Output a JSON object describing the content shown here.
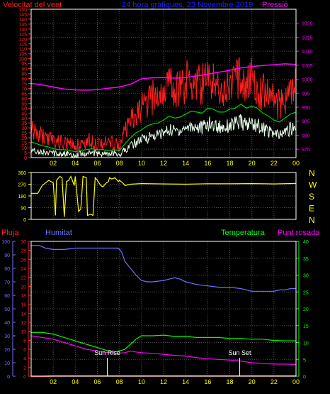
{
  "chart_data": [
    {
      "type": "line",
      "title": "24 hora gràfiques, 23 Novembre 2019",
      "left_label": "Velocitat del vent",
      "right_label": "Pressió",
      "colors": {
        "title": "#2020ff",
        "left_label": "#ff2020",
        "right_label": "#ff00ff",
        "grid": "#505050",
        "axis": "#ffffff"
      },
      "x_ticks": [
        "02",
        "04",
        "06",
        "08",
        "10",
        "12",
        "14",
        "16",
        "18",
        "20",
        "22",
        "00"
      ],
      "xlim": [
        0,
        24
      ],
      "ylim_left": [
        0,
        150
      ],
      "y_ticks_left": [
        0,
        5,
        10,
        15,
        20,
        25,
        30,
        35,
        40,
        45,
        50,
        55,
        60,
        65,
        70,
        75,
        80,
        85,
        90,
        95,
        100,
        105,
        110,
        115,
        120,
        125,
        130,
        135,
        140,
        145,
        150
      ],
      "ylim_right": [
        972,
        1025
      ],
      "y_ticks_right": [
        975,
        980,
        985,
        990,
        995,
        1000,
        1005,
        1010,
        1015,
        1020
      ],
      "series": [
        {
          "key": "pressure",
          "color": "#ff00ff",
          "axis": "right",
          "x": [
            0,
            1,
            2,
            3,
            4,
            5,
            6,
            7,
            8,
            9,
            10,
            11,
            12,
            13,
            14,
            15,
            16,
            17,
            18,
            19,
            20,
            21,
            22,
            23,
            24
          ],
          "values": [
            998.5,
            998,
            997.2,
            996.5,
            996.2,
            996.1,
            996.3,
            996.8,
            997.2,
            998.2,
            1000.2,
            1000.5,
            1000.6,
            1000.4,
            1000.6,
            1001.2,
            1001.8,
            1002.5,
            1003.2,
            1004,
            1004.5,
            1004.9,
            1005.2,
            1005.5,
            1005.3
          ]
        },
        {
          "key": "gust",
          "color": "#ff2020",
          "axis": "left",
          "x": [
            0,
            0.5,
            1,
            1.5,
            2,
            2.5,
            3,
            3.5,
            4,
            4.5,
            5,
            5.5,
            6,
            6.5,
            7,
            7.5,
            8,
            8.5,
            9,
            9.5,
            10,
            10.5,
            11,
            11.5,
            12,
            12.5,
            13,
            13.5,
            14,
            14.5,
            15,
            15.5,
            16,
            16.5,
            17,
            17.5,
            18,
            18.5,
            19,
            19.5,
            20,
            20.5,
            21,
            21.5,
            22,
            22.5,
            23,
            23.5,
            24
          ],
          "values": [
            28,
            24,
            22,
            20,
            17,
            16,
            15,
            13,
            12,
            14,
            16,
            18,
            15,
            16,
            14,
            15,
            12,
            25,
            35,
            42,
            50,
            55,
            60,
            62,
            68,
            75,
            70,
            72,
            76,
            80,
            78,
            74,
            80,
            78,
            72,
            70,
            76,
            78,
            82,
            75,
            80,
            72,
            66,
            70,
            58,
            52,
            60,
            66,
            72
          ]
        },
        {
          "key": "wind",
          "color": "#00d000",
          "axis": "left",
          "x": [
            0,
            0.5,
            1,
            1.5,
            2,
            2.5,
            3,
            3.5,
            4,
            4.5,
            5,
            5.5,
            6,
            6.5,
            7,
            7.5,
            8,
            8.5,
            9,
            9.5,
            10,
            10.5,
            11,
            11.5,
            12,
            12.5,
            13,
            13.5,
            14,
            14.5,
            15,
            15.5,
            16,
            16.5,
            17,
            17.5,
            18,
            18.5,
            19,
            19.5,
            20,
            20.5,
            21,
            21.5,
            22,
            22.5,
            23,
            23.5,
            24
          ],
          "values": [
            16,
            14,
            12,
            11,
            9,
            8,
            8,
            7,
            6,
            7,
            8,
            9,
            8,
            8,
            7,
            8,
            7,
            14,
            20,
            25,
            28,
            32,
            34,
            35,
            38,
            42,
            40,
            41,
            44,
            47,
            46,
            45,
            50,
            49,
            46,
            46,
            49,
            50,
            54,
            50,
            52,
            50,
            45,
            42,
            38,
            36,
            40,
            44,
            46
          ]
        },
        {
          "key": "average",
          "color": "#e8ffe8",
          "axis": "left",
          "x": [
            0,
            0.5,
            1,
            1.5,
            2,
            2.5,
            3,
            3.5,
            4,
            4.5,
            5,
            5.5,
            6,
            6.5,
            7,
            7.5,
            8,
            8.5,
            9,
            9.5,
            10,
            10.5,
            11,
            11.5,
            12,
            12.5,
            13,
            13.5,
            14,
            14.5,
            15,
            15.5,
            16,
            16.5,
            17,
            17.5,
            18,
            18.5,
            19,
            19.5,
            20,
            20.5,
            21,
            21.5,
            22,
            22.5,
            23,
            23.5,
            24
          ],
          "values": [
            8,
            7,
            6,
            5,
            4,
            4,
            4,
            3,
            3,
            4,
            4,
            5,
            4,
            4,
            3,
            4,
            3,
            8,
            12,
            15,
            18,
            20,
            22,
            23,
            25,
            28,
            27,
            28,
            30,
            32,
            31,
            30,
            34,
            33,
            31,
            31,
            33,
            34,
            36,
            33,
            35,
            33,
            29,
            27,
            24,
            22,
            26,
            29,
            31
          ]
        }
      ]
    },
    {
      "type": "line",
      "title": "",
      "x_ticks": [
        "02",
        "04",
        "06",
        "08",
        "10",
        "12",
        "14",
        "16",
        "18",
        "20",
        "22",
        "00"
      ],
      "xlim": [
        0,
        24
      ],
      "ylim_left": [
        0,
        360
      ],
      "y_ticks_left": [
        0,
        90,
        180,
        270,
        360
      ],
      "direction_labels": [
        "N",
        "W",
        "S",
        "E",
        "N"
      ],
      "colors": {
        "line": "#ffff00",
        "labels": "#ffff00"
      },
      "series": [
        {
          "key": "direction",
          "color": "#ffff00",
          "x": [
            0,
            0.6,
            1,
            1.3,
            1.6,
            2,
            2.2,
            2.3,
            2.6,
            2.8,
            3,
            3.2,
            3.4,
            3.6,
            3.9,
            4,
            4.3,
            4.5,
            4.7,
            5,
            5.1,
            5.4,
            5.6,
            5.8,
            6,
            6.3,
            6.5,
            6.8,
            7,
            7.1,
            7.3,
            7.6,
            7.9,
            8,
            8.3,
            8.5,
            9,
            10,
            12,
            14,
            16,
            18,
            20,
            22,
            24
          ],
          "values": [
            200,
            200,
            260,
            280,
            300,
            280,
            30,
            300,
            330,
            320,
            20,
            290,
            300,
            330,
            260,
            330,
            60,
            80,
            330,
            320,
            30,
            40,
            30,
            320,
            300,
            260,
            250,
            280,
            290,
            320,
            310,
            320,
            290,
            300,
            280,
            260,
            270,
            275,
            272,
            270,
            274,
            273,
            275,
            272,
            276
          ]
        }
      ]
    },
    {
      "type": "line",
      "left_label": "Pluja",
      "left2_label": "Humitat",
      "right_label": "Temperatura",
      "right2_label": "Punt rosada",
      "colors": {
        "left_label": "#ff2020",
        "left2_label": "#7070ff",
        "right_label": "#00ff00",
        "right2_label": "#ff00ff",
        "rain_axis": "#ff2020",
        "humidity_axis": "#7070ff",
        "temp_axis": "#00ff00"
      },
      "x_ticks": [
        "02",
        "04",
        "06",
        "08",
        "10",
        "12",
        "14",
        "16",
        "18",
        "20",
        "22",
        "00"
      ],
      "xlim": [
        0,
        24
      ],
      "y_ticks_humidity": [
        0,
        10,
        20,
        30,
        40,
        50,
        60,
        70,
        80,
        90,
        100
      ],
      "ylim_humidity": [
        0,
        100
      ],
      "y_ticks_rain": [
        0,
        2,
        4,
        6,
        8,
        10,
        12,
        14,
        16,
        18,
        20,
        22,
        24,
        26,
        28,
        30
      ],
      "ylim_rain": [
        0,
        30
      ],
      "y_ticks_temp": [
        0,
        5,
        10,
        15,
        20,
        25,
        30,
        35,
        40
      ],
      "ylim_temp": [
        0,
        40
      ],
      "annotations": [
        {
          "text": "Sun Rise",
          "x": 6.9
        },
        {
          "text": "Sun Set",
          "x": 18.9
        }
      ],
      "series": [
        {
          "key": "humidity",
          "color": "#7070ff",
          "axis": "humidity",
          "x": [
            0,
            0.7,
            1,
            1.3,
            2,
            3,
            4,
            5,
            6,
            7,
            7.9,
            8.2,
            8.5,
            9,
            9.5,
            10,
            10.5,
            11,
            12,
            12.5,
            13,
            13.5,
            14,
            15,
            16,
            17,
            18,
            19,
            19.5,
            20,
            21,
            22,
            22.5,
            23,
            23.5,
            24
          ],
          "values": [
            97,
            97,
            96,
            95,
            94,
            94,
            95,
            95,
            95,
            95,
            95,
            92,
            85,
            80,
            75,
            71,
            70,
            70,
            71,
            72,
            73,
            72,
            70,
            68,
            67,
            66,
            66,
            65,
            64,
            63,
            63,
            63,
            64,
            64,
            65,
            65
          ]
        },
        {
          "key": "temperature",
          "color": "#00ff00",
          "axis": "temp",
          "x": [
            0,
            1,
            2,
            3,
            4,
            5,
            6,
            7,
            7.5,
            8,
            8.5,
            9,
            9.5,
            10,
            10.5,
            11,
            12,
            13,
            14,
            15,
            16,
            17,
            18,
            19,
            20,
            21,
            22,
            23,
            24
          ],
          "values": [
            13,
            13,
            12.5,
            11.5,
            10.5,
            9.5,
            8.5,
            7.5,
            7.2,
            7.5,
            8,
            9.5,
            11,
            12,
            12,
            12,
            12.2,
            11.8,
            11.8,
            11.5,
            11.5,
            11.5,
            11.2,
            11.2,
            11,
            11,
            10.6,
            10.5,
            10.5
          ]
        },
        {
          "key": "dewpoint",
          "color": "#ff00ff",
          "axis": "temp",
          "x": [
            0,
            1,
            2,
            3,
            4,
            5,
            6,
            7,
            7.8,
            8.5,
            9,
            9.5,
            10,
            11,
            12,
            13,
            14,
            15,
            16,
            17,
            18,
            19,
            20,
            21,
            22,
            23,
            24
          ],
          "values": [
            12,
            11.5,
            11,
            10,
            9,
            8,
            7.5,
            7,
            6.8,
            7,
            7.5,
            7.2,
            7,
            6.8,
            6.5,
            6.2,
            6,
            5.5,
            5.2,
            5,
            4.8,
            4.5,
            4,
            3.8,
            3.6,
            3.6,
            3.5
          ]
        },
        {
          "key": "rain",
          "color": "#ff2020",
          "axis": "rain",
          "x": [
            0,
            1,
            2,
            4,
            6,
            8,
            10,
            12,
            14,
            16,
            18,
            20,
            22,
            24
          ],
          "values": [
            0,
            0,
            0.1,
            0.1,
            0.1,
            0.1,
            0.1,
            0.1,
            0.1,
            0.1,
            0.1,
            0.1,
            0.1,
            0.1
          ]
        }
      ]
    }
  ]
}
